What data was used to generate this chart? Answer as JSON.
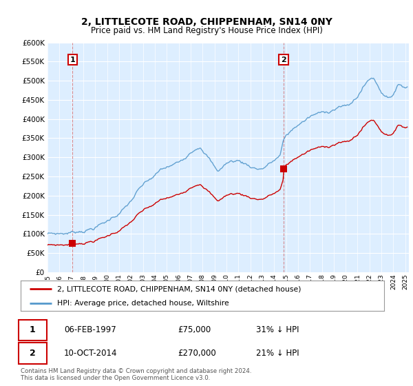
{
  "title": "2, LITTLECOTE ROAD, CHIPPENHAM, SN14 0NY",
  "subtitle": "Price paid vs. HM Land Registry's House Price Index (HPI)",
  "sale1_date": "06-FEB-1997",
  "sale1_price": 75000,
  "sale1_label": "1",
  "sale1_year": 1997.1,
  "sale2_date": "10-OCT-2014",
  "sale2_price": 270000,
  "sale2_label": "2",
  "sale2_year": 2014.79,
  "legend_line1": "2, LITTLECOTE ROAD, CHIPPENHAM, SN14 0NY (detached house)",
  "legend_line2": "HPI: Average price, detached house, Wiltshire",
  "line_color_red": "#cc0000",
  "line_color_blue": "#5599cc",
  "background_color": "#ddeeff",
  "ylim": [
    0,
    600000
  ],
  "xlim_start": 1995.0,
  "xlim_end": 2025.3
}
